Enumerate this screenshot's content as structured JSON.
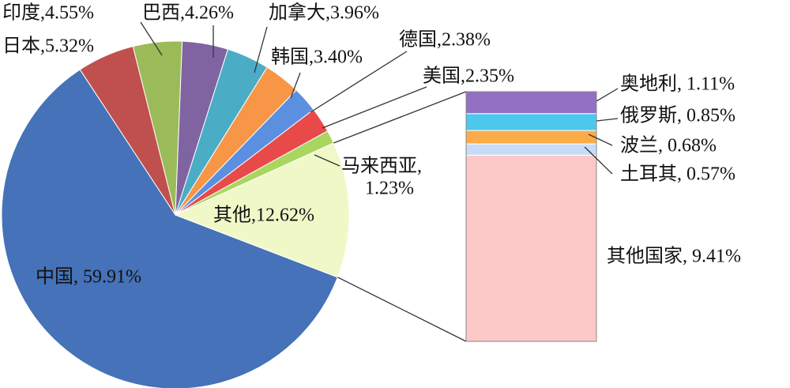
{
  "chart_data": {
    "type": "pie-of-bar",
    "pie": {
      "values": [
        59.91,
        5.32,
        4.55,
        4.26,
        3.96,
        3.4,
        2.38,
        2.35,
        1.23,
        12.62
      ],
      "value_labels": [
        [
          "中国, 59.91%"
        ],
        [
          "日本,5.32%"
        ],
        [
          "印度,4.55%"
        ],
        [
          "巴西,4.26%"
        ],
        [
          "加拿大,3.96%"
        ],
        [
          "韩国,3.40%"
        ],
        [
          "德国,2.38%"
        ],
        [
          "美国,2.35%"
        ],
        [
          "马来西亚,",
          "1.23%"
        ],
        [
          "其他,12.62%"
        ]
      ],
      "colors": [
        "#4572b8",
        "#c0504d",
        "#9bbb59",
        "#8064a2",
        "#4bacc6",
        "#f79646",
        "#5b8fe0",
        "#e84a4a",
        "#a8d65e",
        "#f0f8c8"
      ]
    },
    "bar": {
      "values": [
        1.11,
        0.85,
        0.68,
        0.57,
        9.41
      ],
      "value_labels": [
        [
          "奥地利, 1.11%"
        ],
        [
          "俄罗斯, 0.85%"
        ],
        [
          "波兰, 0.68%"
        ],
        [
          "土耳其, 0.57%"
        ],
        [
          "其他国家, 9.41%"
        ]
      ],
      "colors": [
        "#9370c4",
        "#4cc8ec",
        "#fbab48",
        "#c8dcf8",
        "#fdc8c8"
      ]
    }
  }
}
